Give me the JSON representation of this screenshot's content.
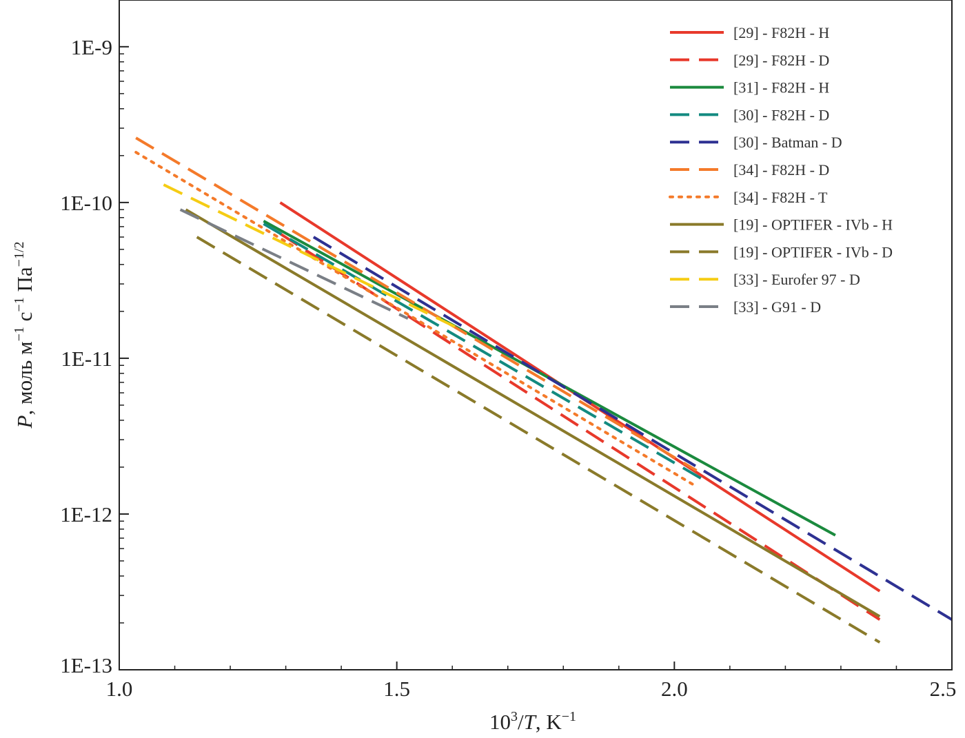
{
  "chart_data": {
    "type": "line",
    "title": "",
    "xlabel": {
      "base": "10",
      "exp": "3",
      "frac": "/",
      "var": "T",
      "unit": ", K",
      "unit_exp": "−1"
    },
    "ylabel": {
      "var": "P",
      "unit1": ", моль м",
      "exp1": "−1",
      "unit2": " с",
      "exp2": "−1",
      "unit3": " Па",
      "exp3": "−1/2"
    },
    "xlim": [
      1.0,
      2.5
    ],
    "ylim_log10": [
      -13,
      -8.7
    ],
    "y_scale": "log",
    "x_ticks": [
      1.0,
      1.5,
      2.0,
      2.5
    ],
    "x_tick_labels": [
      "1.0",
      "1.5",
      "2.0",
      "2.5"
    ],
    "y_ticks_log10": [
      -13,
      -12,
      -11,
      -10,
      -9
    ],
    "y_tick_labels": [
      "1E-13",
      "1E-12",
      "1E-11",
      "1E-10",
      "1E-9"
    ],
    "legend_position": "top-right",
    "series": [
      {
        "name": "[29] - F82H - H",
        "color": "#e8392b",
        "style": "solid",
        "x": [
          1.29,
          2.37
        ],
        "y": [
          1e-10,
          3.2e-13
        ]
      },
      {
        "name": "[29] - F82H - D",
        "color": "#e8392b",
        "style": "dashed",
        "x": [
          1.29,
          2.37
        ],
        "y": [
          6.3e-11,
          2.1e-13
        ]
      },
      {
        "name": "[31] - F82H - H",
        "color": "#1b8a3e",
        "style": "solid",
        "x": [
          1.26,
          2.29
        ],
        "y": [
          7.6e-11,
          7.3e-13
        ]
      },
      {
        "name": "[30] - F82H - D",
        "color": "#138a80",
        "style": "dashed",
        "x": [
          1.26,
          2.06
        ],
        "y": [
          7.3e-11,
          1.6e-12
        ]
      },
      {
        "name": "[30] - Batman - D",
        "color": "#2e3192",
        "style": "dashed",
        "x": [
          1.35,
          2.5
        ],
        "y": [
          6e-11,
          2.1e-13
        ]
      },
      {
        "name": "[34] - F82H - D",
        "color": "#f47a2a",
        "style": "dashed",
        "x": [
          1.03,
          2.04
        ],
        "y": [
          2.6e-10,
          1.9e-12
        ]
      },
      {
        "name": "[34] - F82H - T",
        "color": "#f47a2a",
        "style": "dotted",
        "x": [
          1.03,
          2.04
        ],
        "y": [
          2.1e-10,
          1.5e-12
        ]
      },
      {
        "name": "[19] - OPTIFER - IVb - H",
        "color": "#8a7a2a",
        "style": "solid",
        "x": [
          1.12,
          2.37
        ],
        "y": [
          9e-11,
          2.2e-13
        ]
      },
      {
        "name": "[19] - OPTIFER - IVb - D",
        "color": "#8a7a2a",
        "style": "dashed",
        "x": [
          1.14,
          2.37
        ],
        "y": [
          6e-11,
          1.5e-13
        ]
      },
      {
        "name": "[33] - Eurofer 97 - D",
        "color": "#f5cc14",
        "style": "dashed",
        "x": [
          1.08,
          1.62
        ],
        "y": [
          1.3e-10,
          1.5e-11
        ]
      },
      {
        "name": "[33] - G91 - D",
        "color": "#7a7f86",
        "style": "dashed",
        "x": [
          1.11,
          1.52
        ],
        "y": [
          9e-11,
          1.8e-11
        ]
      }
    ]
  }
}
